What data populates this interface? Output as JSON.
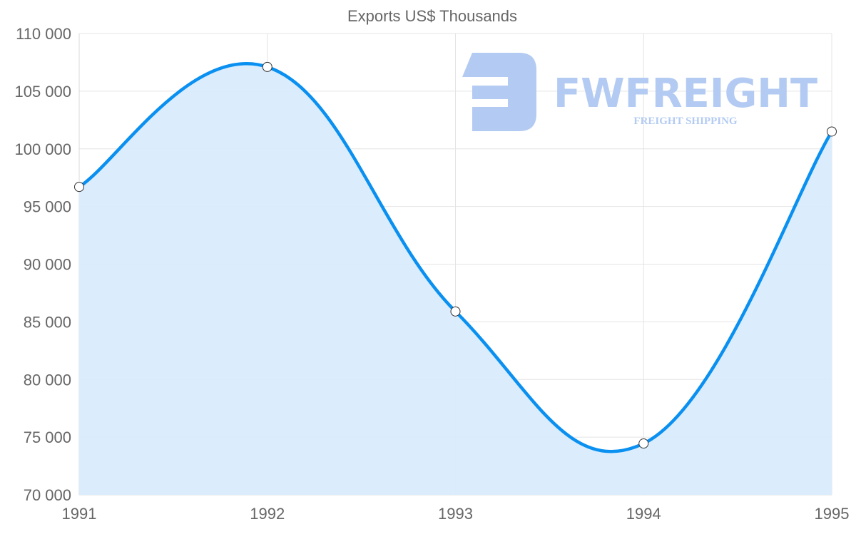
{
  "chart_data": {
    "type": "line",
    "title": "Exports US$ Thousands",
    "xlabel": "",
    "ylabel": "",
    "categories": [
      "1991",
      "1992",
      "1993",
      "1994",
      "1995"
    ],
    "series": [
      {
        "name": "Exports US$ Thousands",
        "values": [
          96700,
          107100,
          85900,
          74450,
          101500
        ]
      }
    ],
    "ylim": [
      70000,
      110000
    ],
    "yticks": [
      70000,
      75000,
      80000,
      85000,
      90000,
      95000,
      100000,
      105000,
      110000
    ],
    "ytick_labels": [
      "70 000",
      "75 000",
      "80 000",
      "85 000",
      "90 000",
      "95 000",
      "100 000",
      "105 000",
      "110 000"
    ],
    "grid": true,
    "fill": true,
    "line_color": "#0a90f0",
    "fill_color": "#d9ecfd"
  },
  "watermark": {
    "brand": "FWFREIGHT",
    "tagline": "FREIGHT SHIPPING",
    "color": "#b3cbf2"
  }
}
